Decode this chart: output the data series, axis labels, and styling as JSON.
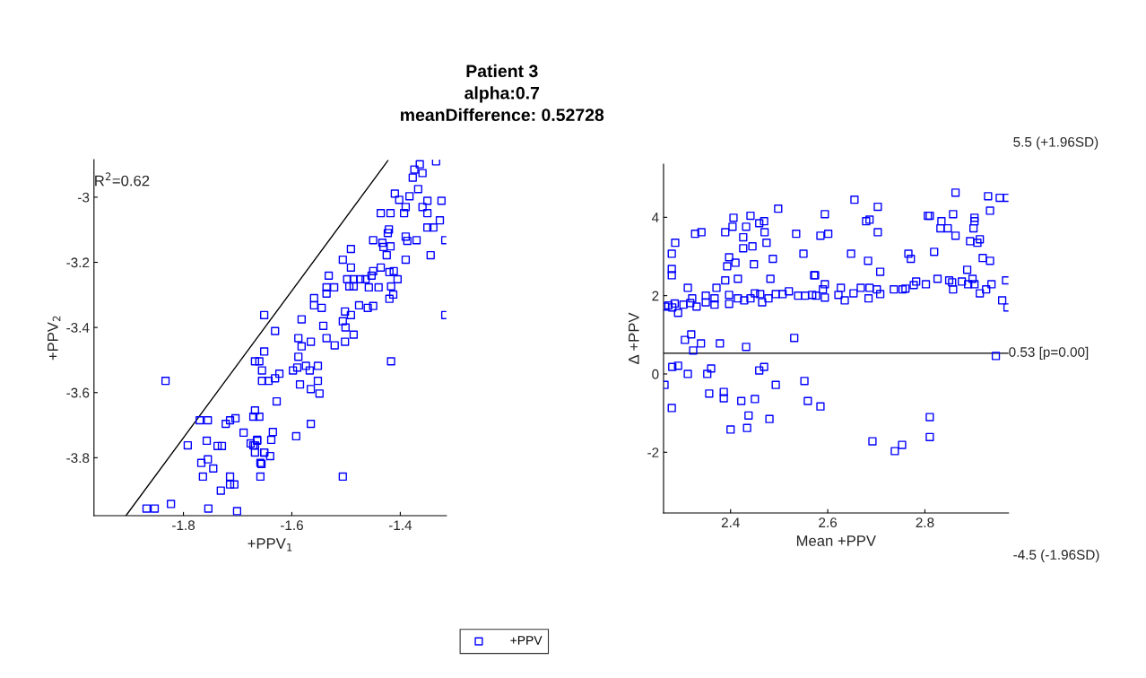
{
  "chart_data": [
    {
      "type": "scatter",
      "title": "Patient 3\nalpha:0.7\nmeanDifference: 0.52728",
      "xlabel": "+PPV$_{1}$",
      "ylabel": "+PPV$_{2}$",
      "xlim": [
        -1.965,
        -1.315
      ],
      "ylim": [
        -3.978,
        -2.885
      ],
      "xticks": [
        -1.8,
        -1.6,
        -1.4
      ],
      "yticks": [
        -3.8,
        -3.6,
        -3.4,
        -3.2,
        -3
      ],
      "marker": "square",
      "annotations": [
        "R$^{2}$=0.62"
      ],
      "series": [
        {
          "type": "scatter",
          "color": "#0000ff",
          "x": [
            -1.833,
            -1.651,
            -1.651,
            -1.668,
            -1.66,
            -1.655,
            -1.655,
            -1.77,
            -1.755,
            -1.722,
            -1.714,
            -1.704,
            -1.668,
            -1.671,
            -1.66,
            -1.792,
            -1.757,
            -1.737,
            -1.729,
            -1.689,
            -1.676,
            -1.668,
            -1.664,
            -1.668,
            -1.651,
            -1.767,
            -1.755,
            -1.745,
            -1.764,
            -1.714,
            -1.731,
            -1.714,
            -1.706,
            -1.658,
            -1.658,
            -1.868,
            -1.853,
            -1.823,
            -1.754,
            -1.701,
            -1.334,
            -1.364,
            -1.374,
            -1.359,
            -1.377,
            -1.367,
            -1.41,
            -1.402,
            -1.383,
            -1.39,
            -1.359,
            -1.35,
            -1.324,
            -1.436,
            -1.418,
            -1.393,
            -1.35,
            -1.327,
            -1.35,
            -1.339,
            -1.421,
            -1.423,
            -1.45,
            -1.433,
            -1.431,
            -1.418,
            -1.39,
            -1.387,
            -1.37,
            -1.317,
            -1.425,
            -1.491,
            -1.506,
            -1.491,
            -1.39,
            -1.344,
            -1.436,
            -1.532,
            -1.498,
            -1.486,
            -1.474,
            -1.464,
            -1.453,
            -1.45,
            -1.42,
            -1.412,
            -1.405,
            -1.536,
            -1.522,
            -1.536,
            -1.494,
            -1.486,
            -1.458,
            -1.44,
            -1.417,
            -1.413,
            -1.42,
            -1.559,
            -1.559,
            -1.545,
            -1.476,
            -1.46,
            -1.45,
            -1.317,
            -1.582,
            -1.502,
            -1.491,
            -1.506,
            -1.501,
            -1.631,
            -1.542,
            -1.486,
            -1.502,
            -1.588,
            -1.582,
            -1.565,
            -1.536,
            -1.521,
            -1.588,
            -1.598,
            -1.59,
            -1.574,
            -1.567,
            -1.552,
            -1.417,
            -1.623,
            -1.631,
            -1.643,
            -1.585,
            -1.565,
            -1.552,
            -1.549,
            -1.628,
            -1.565,
            -1.592,
            -1.635,
            -1.638,
            -1.664,
            -1.671,
            -1.651,
            -1.64,
            -1.656,
            -1.506
          ],
          "values": [
            -3.564,
            -3.362,
            -3.474,
            -3.504,
            -3.504,
            -3.532,
            -3.564,
            -3.685,
            -3.685,
            -3.696,
            -3.685,
            -3.679,
            -3.655,
            -3.674,
            -3.674,
            -3.762,
            -3.748,
            -3.764,
            -3.764,
            -3.723,
            -3.756,
            -3.762,
            -3.748,
            -3.784,
            -3.784,
            -3.816,
            -3.805,
            -3.833,
            -3.858,
            -3.858,
            -3.901,
            -3.882,
            -3.882,
            -3.816,
            -3.858,
            -3.956,
            -3.956,
            -3.942,
            -3.956,
            -3.964,
            -2.89,
            -2.899,
            -2.915,
            -2.926,
            -2.94,
            -2.975,
            -2.989,
            -3.008,
            -2.997,
            -3.03,
            -3.03,
            -3.011,
            -3.011,
            -3.049,
            -3.049,
            -3.049,
            -3.049,
            -3.071,
            -3.093,
            -3.093,
            -3.099,
            -3.11,
            -3.132,
            -3.14,
            -3.153,
            -3.151,
            -3.121,
            -3.134,
            -3.132,
            -3.132,
            -3.178,
            -3.159,
            -3.192,
            -3.216,
            -3.192,
            -3.178,
            -3.216,
            -3.241,
            -3.252,
            -3.252,
            -3.252,
            -3.252,
            -3.241,
            -3.227,
            -3.23,
            -3.227,
            -3.252,
            -3.277,
            -3.277,
            -3.296,
            -3.274,
            -3.274,
            -3.277,
            -3.277,
            -3.274,
            -3.299,
            -3.312,
            -3.31,
            -3.332,
            -3.34,
            -3.332,
            -3.34,
            -3.334,
            -3.362,
            -3.375,
            -3.351,
            -3.362,
            -3.381,
            -3.4,
            -3.411,
            -3.395,
            -3.422,
            -3.444,
            -3.433,
            -3.458,
            -3.444,
            -3.433,
            -3.455,
            -3.49,
            -3.532,
            -3.523,
            -3.518,
            -3.532,
            -3.518,
            -3.504,
            -3.542,
            -3.556,
            -3.564,
            -3.575,
            -3.589,
            -3.564,
            -3.603,
            -3.627,
            -3.696,
            -3.734,
            -3.721,
            -3.745,
            -3.745,
            -3.762,
            -3.784,
            -3.795,
            -3.819,
            -3.858
          ]
        },
        {
          "type": "line",
          "color": "#000000",
          "marker": "none",
          "x": [
            -1.906,
            -1.423
          ],
          "values": [
            -3.978,
            -2.888
          ]
        }
      ]
    },
    {
      "type": "scatter",
      "xlabel": "Mean +PPV",
      "ylabel": "Δ +PPV",
      "xlim": [
        2.262,
        2.972
      ],
      "ylim": [
        -3.55,
        5.36
      ],
      "xticks": [
        2.4,
        2.6,
        2.8
      ],
      "yticks": [
        -2,
        0,
        2,
        4
      ],
      "marker": "square",
      "legend": "bottom",
      "annotations": [
        "5.5 (+1.96SD)",
        "-4.5 (-1.96SD)"
      ],
      "ref_lines": [
        {
          "axis": "y",
          "value": 0.53,
          "label": "0.53 [p=0.00]",
          "color": "#000000"
        }
      ],
      "series": [
        {
          "name": "+PPV",
          "color": "#0000ff",
          "x": [
            2.265,
            2.272,
            2.28,
            2.285,
            2.279,
            2.286,
            2.279,
            2.279,
            2.292,
            2.312,
            2.303,
            2.317,
            2.33,
            2.321,
            2.349,
            2.349,
            2.367,
            2.367,
            2.327,
            2.34,
            2.371,
            2.389,
            2.406,
            2.404,
            2.397,
            2.393,
            2.41,
            2.389,
            2.415,
            2.426,
            2.432,
            2.426,
            2.445,
            2.441,
            2.448,
            2.459,
            2.469,
            2.47,
            2.474,
            2.487,
            2.482,
            2.498,
            2.397,
            2.397,
            2.415,
            2.428,
            2.441,
            2.45,
            2.461,
            2.465,
            2.478,
            2.493,
            2.507,
            2.52,
            2.539,
            2.553,
            2.568,
            2.535,
            2.55,
            2.572,
            2.531,
            2.306,
            2.319,
            2.323,
            2.339,
            2.378,
            2.432,
            2.28,
            2.292,
            2.312,
            2.352,
            2.36,
            2.264,
            2.279,
            2.356,
            2.386,
            2.386,
            2.422,
            2.45,
            2.459,
            2.469,
            2.493,
            2.552,
            2.559,
            2.4,
            2.434,
            2.437,
            2.48,
            2.655,
            2.703,
            2.594,
            2.679,
            2.686,
            2.703,
            2.585,
            2.601,
            2.648,
            2.683,
            2.708,
            2.766,
            2.771,
            2.819,
            2.574,
            2.863,
            2.93,
            2.954,
            2.969,
            2.934,
            2.806,
            2.81,
            2.858,
            2.902,
            2.902,
            2.834,
            2.832,
            2.847,
            2.863,
            2.9,
            2.893,
            2.908,
            2.913,
            2.919,
            2.934,
            2.887,
            2.576,
            2.594,
            2.594,
            2.59,
            2.622,
            2.627,
            2.635,
            2.653,
            2.668,
            2.686,
            2.684,
            2.701,
            2.708,
            2.736,
            2.754,
            2.76,
            2.777,
            2.782,
            2.802,
            2.826,
            2.85,
            2.856,
            2.858,
            2.876,
            2.889,
            2.898,
            2.902,
            2.913,
            2.926,
            2.937,
            2.967,
            2.959,
            2.97,
            2.946,
            2.585,
            2.692,
            2.738,
            2.753,
            2.81,
            2.81
          ],
          "values": [
            1.72,
            1.75,
            1.7,
            1.8,
            3.07,
            3.35,
            2.68,
            2.52,
            1.56,
            2.2,
            1.77,
            1.81,
            1.72,
            1.93,
            2.0,
            1.83,
            1.93,
            1.77,
            3.58,
            3.62,
            2.2,
            3.62,
            3.99,
            3.76,
            2.98,
            2.75,
            2.84,
            2.39,
            2.43,
            3.49,
            3.76,
            3.21,
            3.26,
            4.04,
            2.8,
            3.85,
            3.9,
            3.62,
            3.35,
            2.94,
            2.43,
            4.22,
            2.02,
            1.79,
            1.93,
            1.88,
            1.93,
            2.06,
            2.04,
            1.83,
            1.93,
            2.04,
            2.04,
            2.11,
            2.0,
            2.0,
            2.02,
            3.58,
            3.07,
            2.52,
            0.92,
            0.87,
            1.01,
            0.6,
            0.78,
            0.78,
            0.69,
            0.18,
            0.21,
            0.0,
            0.0,
            0.14,
            -0.28,
            -0.87,
            -0.5,
            -0.46,
            -0.62,
            -0.69,
            -0.64,
            0.09,
            0.18,
            -0.28,
            -0.18,
            -0.69,
            -1.42,
            -1.38,
            -1.06,
            -1.15,
            4.45,
            4.27,
            4.08,
            3.9,
            3.94,
            3.62,
            3.53,
            3.58,
            3.07,
            2.89,
            2.61,
            3.07,
            2.94,
            3.12,
            2.52,
            4.63,
            4.54,
            4.5,
            4.5,
            4.17,
            4.04,
            4.04,
            4.08,
            3.99,
            3.9,
            3.9,
            3.72,
            3.72,
            3.53,
            3.72,
            3.39,
            3.35,
            3.44,
            2.96,
            2.89,
            2.66,
            2.0,
            1.95,
            2.29,
            2.16,
            2.02,
            2.2,
            1.88,
            2.06,
            2.2,
            2.2,
            1.93,
            2.16,
            2.04,
            2.16,
            2.16,
            2.18,
            2.27,
            2.36,
            2.29,
            2.43,
            2.39,
            2.34,
            2.16,
            2.36,
            2.29,
            2.43,
            2.29,
            2.06,
            2.16,
            2.29,
            2.39,
            1.88,
            1.7,
            0.46,
            -0.83,
            -1.72,
            -1.97,
            -1.81,
            -1.1,
            -1.61
          ]
        }
      ]
    }
  ]
}
